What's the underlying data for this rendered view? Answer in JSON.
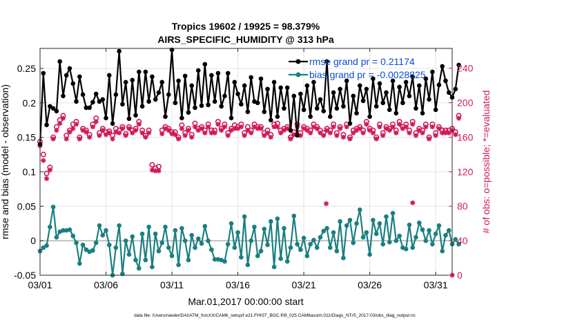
{
  "chart_data": {
    "type": "line",
    "title_line1": "Tropics 19602 / 19925 = 98.379%",
    "title_line2": "AIRS_SPECIFIC_HUMIDITY @ 313 hPa",
    "xlabel": "Mar.01,2017 00:00:00 start",
    "ylabel_left": "rmse and bias (model - observation)",
    "ylabel_right": "# of obs: o=possible; *=evaluated",
    "footer": "data file: /Users/raeder/DAI/ATM_forcXX/CAM6_setup/f.e21.FHIST_BGC.f09_025.CAM6assim.011/Diags_NTrS_2017-03/obs_diag_output.nc",
    "x_ticks": [
      "03/01",
      "03/06",
      "03/11",
      "03/16",
      "03/21",
      "03/26",
      "03/31"
    ],
    "x_tick_days": [
      1,
      6,
      11,
      16,
      21,
      26,
      31
    ],
    "x_range_days": [
      1,
      32.25
    ],
    "y_left_ticks": [
      "-0.05",
      "0",
      "0.05",
      "0.1",
      "0.15",
      "0.2",
      "0.25"
    ],
    "y_left_tick_values": [
      -0.05,
      0,
      0.05,
      0.1,
      0.15,
      0.2,
      0.25
    ],
    "y_left_range": [
      -0.05,
      0.279
    ],
    "y_right_ticks": [
      "0",
      "40",
      "80",
      "120",
      "160",
      "200",
      "240"
    ],
    "y_right_tick_values": [
      0,
      40,
      80,
      120,
      160,
      200,
      240
    ],
    "y_right_range": [
      0,
      263
    ],
    "steps_per_day": 4,
    "legend": [
      "rmse grand pr = 0.21174",
      "bias grand pr = -0.0028825"
    ],
    "colors": {
      "rmse": "#000000",
      "bias": "#1a7f80",
      "obs": "#d0185a",
      "legend_text": "#0a49d6",
      "zero_line": "#b5b5b5"
    },
    "series": [
      {
        "name": "rmse",
        "values": [
          0.14,
          0.243,
          0.168,
          0.195,
          0.192,
          0.188,
          0.26,
          0.21,
          0.24,
          0.25,
          0.228,
          0.202,
          0.238,
          0.212,
          0.193,
          0.193,
          0.201,
          0.213,
          0.202,
          0.205,
          0.178,
          0.24,
          0.17,
          0.212,
          0.275,
          0.198,
          0.23,
          0.177,
          0.233,
          0.182,
          0.245,
          0.195,
          0.245,
          0.202,
          0.238,
          0.205,
          0.215,
          0.23,
          0.18,
          0.212,
          0.277,
          0.2,
          0.232,
          0.178,
          0.239,
          0.186,
          0.225,
          0.193,
          0.247,
          0.196,
          0.256,
          0.197,
          0.24,
          0.202,
          0.243,
          0.195,
          0.21,
          0.243,
          0.178,
          0.23,
          0.213,
          0.198,
          0.225,
          0.187,
          0.237,
          0.202,
          0.2,
          0.235,
          0.187,
          0.22,
          0.175,
          0.23,
          0.18,
          0.222,
          0.192,
          0.222,
          0.16,
          0.21,
          0.153,
          0.213,
          0.19,
          0.225,
          0.18,
          0.23,
          0.192,
          0.205,
          0.188,
          0.26,
          0.18,
          0.215,
          0.192,
          0.22,
          0.195,
          0.232,
          0.17,
          0.21,
          0.185,
          0.225,
          0.203,
          0.22,
          0.18,
          0.235,
          0.195,
          0.228,
          0.2,
          0.215,
          0.19,
          0.232,
          0.185,
          0.223,
          0.2,
          0.23,
          0.21,
          0.238,
          0.192,
          0.225,
          0.185,
          0.235,
          0.205,
          0.245,
          0.19,
          0.226,
          0.253,
          0.232,
          0.215,
          0.208,
          0.22,
          0.255
        ]
      },
      {
        "name": "bias",
        "values": [
          -0.015,
          -0.01,
          -0.007,
          0.02,
          0.049,
          0.005,
          0.013,
          0.015,
          0.015,
          0.016,
          0.007,
          -0.003,
          -0.033,
          -0.006,
          -0.013,
          -0.016,
          -0.014,
          -0.003,
          0.022,
          0.008,
          0.015,
          -0.006,
          -0.05,
          -0.01,
          0.022,
          -0.048,
          0.0,
          -0.02,
          0.006,
          -0.028,
          -0.04,
          0.01,
          -0.028,
          0.02,
          -0.038,
          0.01,
          -0.015,
          -0.003,
          0.02,
          -0.01,
          -0.022,
          0.015,
          -0.035,
          0.018,
          0.0,
          -0.028,
          0.008,
          -0.01,
          0.003,
          -0.004,
          0.021,
          0.0,
          -0.013,
          -0.027,
          -0.027,
          -0.028,
          -0.03,
          -0.005,
          0.025,
          -0.01,
          0.012,
          -0.024,
          0.035,
          -0.035,
          0.0,
          0.02,
          -0.022,
          -0.015,
          0.017,
          -0.006,
          0.028,
          -0.038,
          0.032,
          -0.026,
          0.018,
          -0.03,
          -0.01,
          0.036,
          -0.005,
          -0.013,
          0.004,
          -0.022,
          -0.005,
          0.001,
          -0.01,
          0.005,
          0.014,
          0.018,
          -0.01,
          0.012,
          -0.015,
          0.028,
          -0.025,
          0.022,
          0.03,
          -0.003,
          0.025,
          0.045,
          0.005,
          0.012,
          -0.02,
          0.03,
          0.01,
          0.025,
          -0.005,
          0.035,
          -0.002,
          0.04,
          0.0,
          0.007,
          -0.01,
          -0.012,
          0.023,
          -0.01,
          0.005,
          0.026,
          0.016,
          0.0,
          0.015,
          -0.005,
          0.01,
          0.022,
          -0.015,
          0.008,
          0.015,
          -0.005,
          0.002,
          -0.005
        ]
      },
      {
        "name": "obs_possible",
        "values": [
          155,
          140,
          118,
          125,
          160,
          172,
          180,
          185,
          162,
          168,
          175,
          178,
          160,
          170,
          168,
          163,
          175,
          182,
          165,
          170,
          166,
          167,
          162,
          170,
          168,
          172,
          164,
          172,
          168,
          170,
          178,
          168,
          162,
          168,
          128,
          124,
          126,
          168,
          172,
          170,
          166,
          166,
          160,
          174,
          165,
          170,
          163,
          176,
          170,
          172,
          168,
          175,
          168,
          168,
          178,
          170,
          175,
          165,
          170,
          174,
          172,
          175,
          165,
          172,
          168,
          175,
          172,
          172,
          165,
          168,
          163,
          175,
          176,
          168,
          170,
          172,
          160,
          166,
          175,
          165,
          172,
          170,
          168,
          175,
          172,
          168,
          165,
          170,
          168,
          175,
          165,
          172,
          163,
          175,
          160,
          168,
          170,
          172,
          168,
          178,
          170,
          168,
          160,
          175,
          165,
          172,
          170,
          175,
          168,
          178,
          172,
          175,
          168,
          178,
          165,
          170,
          168,
          175,
          160,
          175,
          165,
          172,
          168,
          168,
          168,
          170,
          166,
          185
        ]
      },
      {
        "name": "obs_evaluated",
        "values": [
          150,
          133,
          112,
          122,
          158,
          168,
          176,
          182,
          158,
          166,
          170,
          175,
          158,
          168,
          166,
          160,
          172,
          178,
          162,
          168,
          163,
          165,
          158,
          166,
          165,
          170,
          162,
          170,
          165,
          168,
          175,
          165,
          160,
          165,
          122,
          121,
          121,
          164,
          170,
          168,
          164,
          163,
          158,
          170,
          162,
          168,
          160,
          172,
          168,
          170,
          165,
          172,
          165,
          165,
          175,
          168,
          172,
          162,
          168,
          170,
          170,
          172,
          162,
          168,
          165,
          172,
          170,
          170,
          162,
          165,
          160,
          172,
          172,
          165,
          168,
          170,
          158,
          163,
          172,
          162,
          170,
          168,
          165,
          172,
          170,
          165,
          162,
          168,
          165,
          172,
          162,
          170,
          160,
          172,
          158,
          165,
          168,
          170,
          165,
          175,
          168,
          165,
          158,
          172,
          162,
          170,
          168,
          172,
          165,
          175,
          170,
          172,
          165,
          175,
          162,
          168,
          165,
          172,
          158,
          172,
          162,
          170,
          165,
          165,
          165,
          168,
          163,
          182
        ]
      }
    ],
    "outlier_points": [
      {
        "series": "obs_evaluated",
        "day": 22.7,
        "value": 83
      },
      {
        "series": "obs_evaluated",
        "day": 29.25,
        "value": 84
      },
      {
        "series": "obs_evaluated",
        "day": 32.25,
        "value": 0
      }
    ]
  }
}
